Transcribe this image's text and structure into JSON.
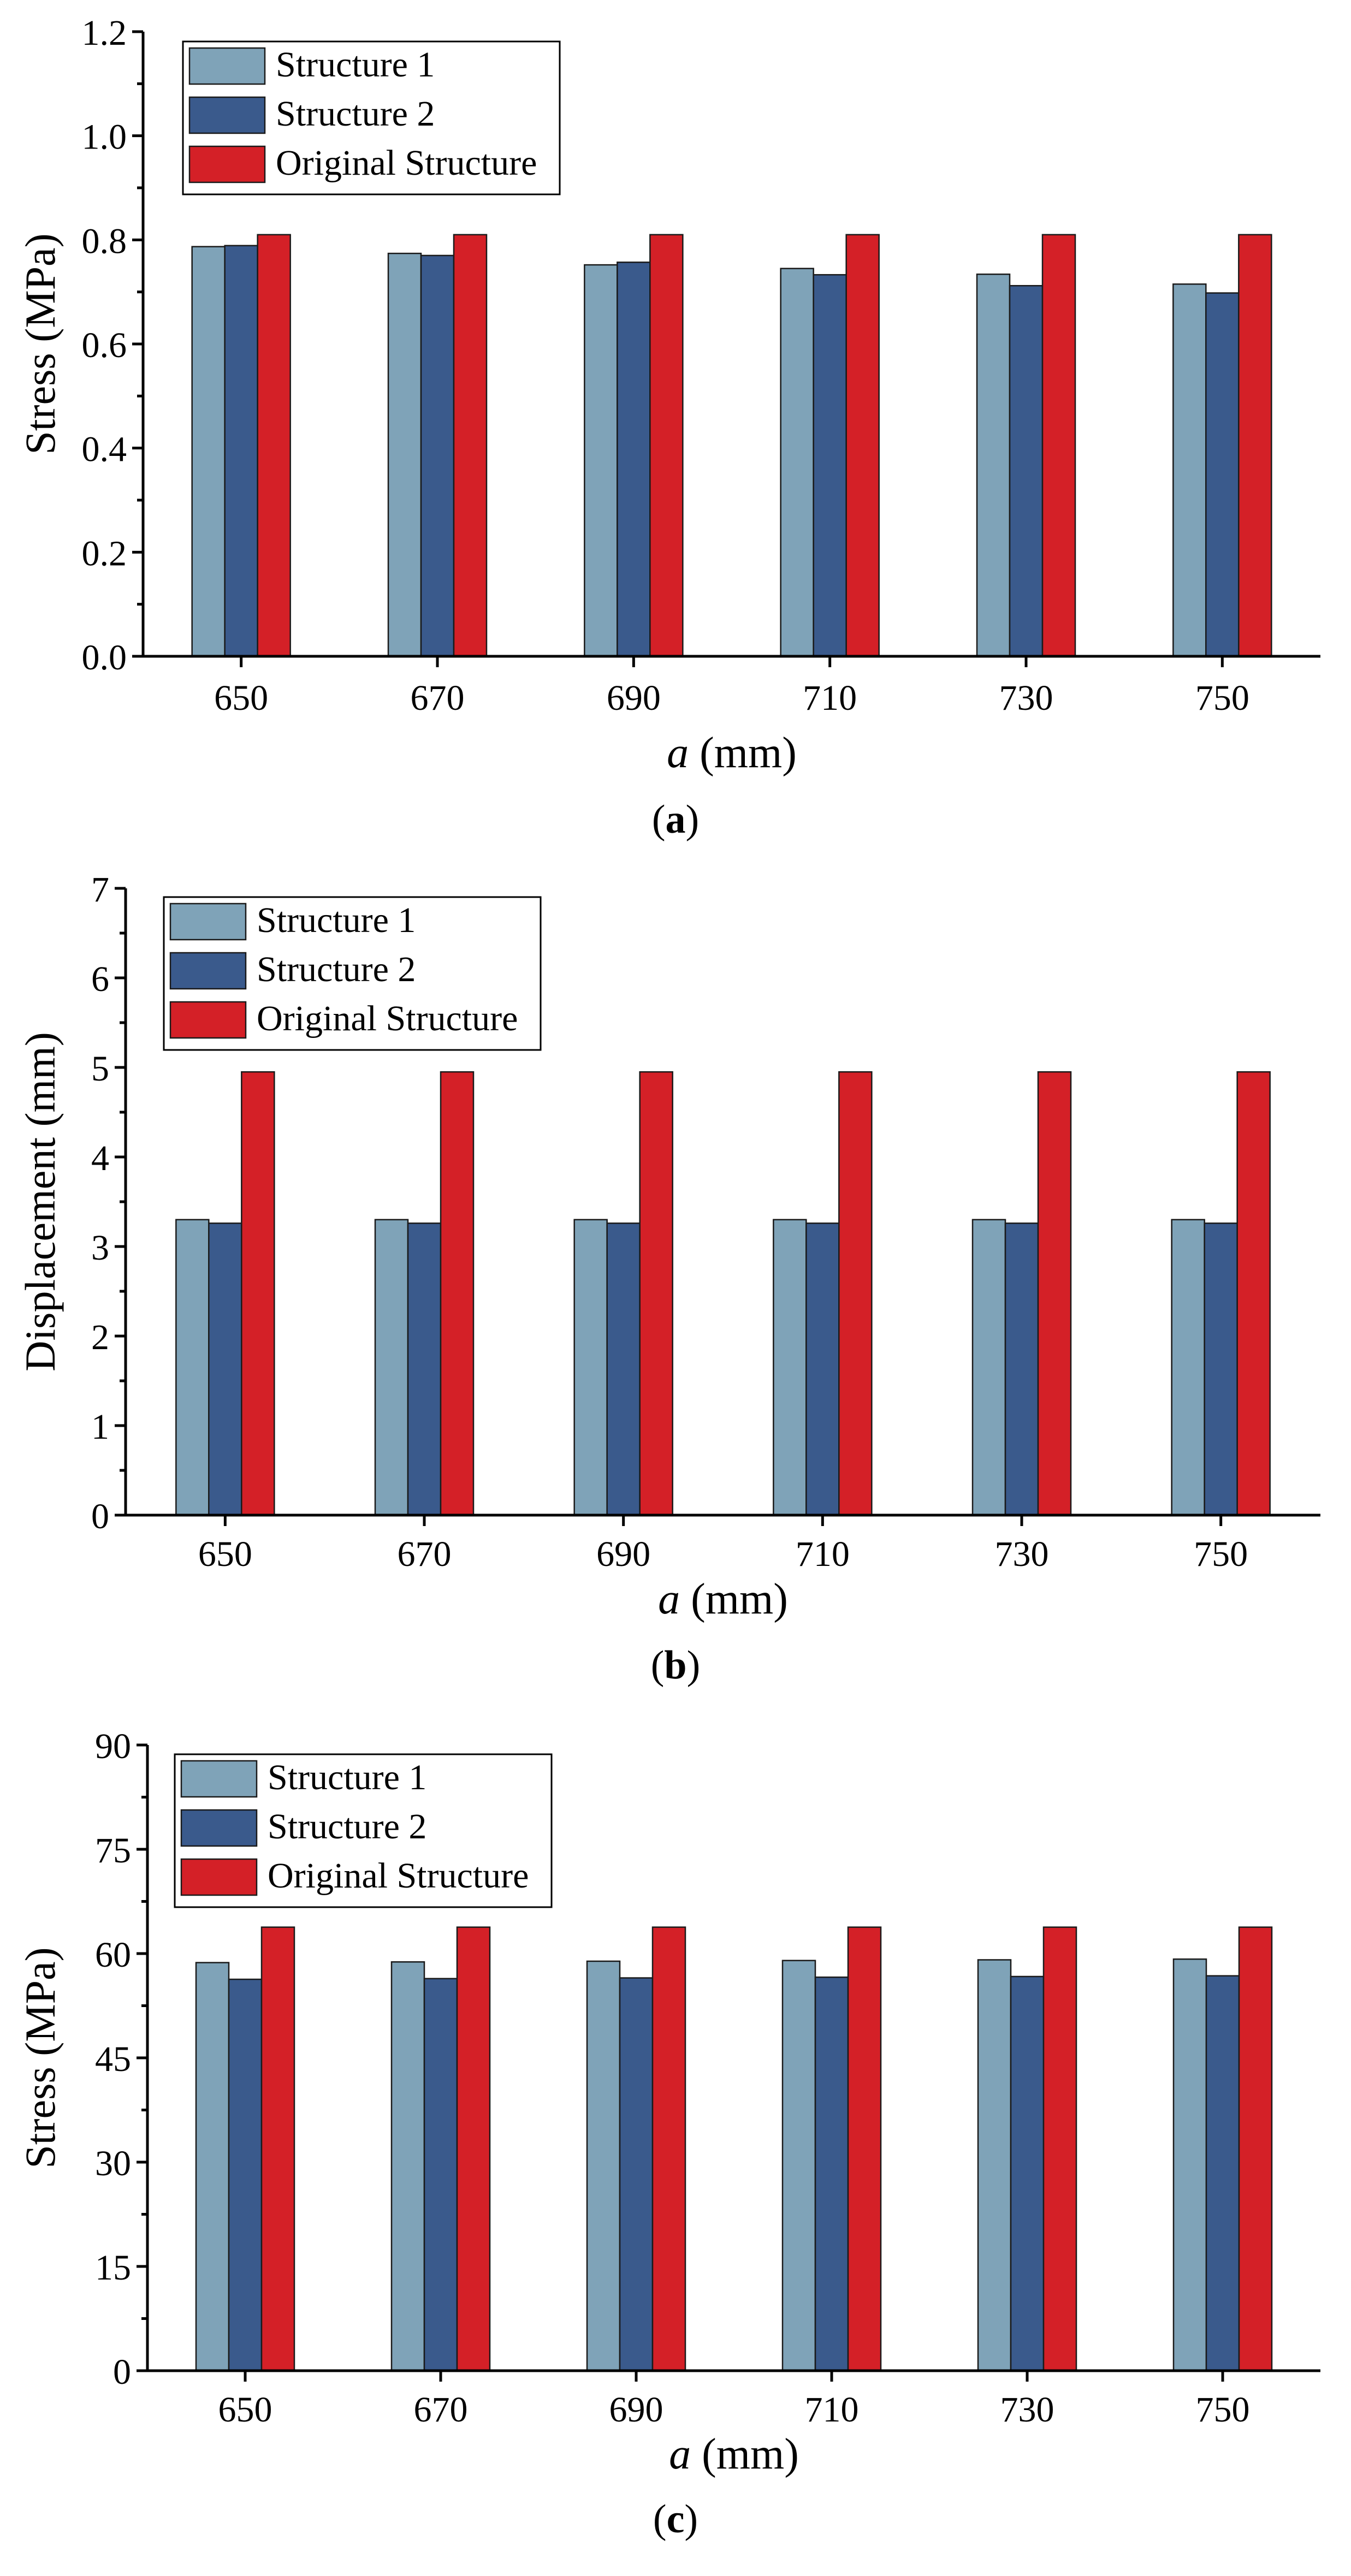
{
  "chart_data": [
    {
      "type": "bar",
      "panel_label": "a",
      "xlabel_var": "a",
      "xlabel_unit": " (mm)",
      "ylabel": "Stress (MPa)",
      "ylim": [
        0,
        1.2
      ],
      "yticks": [
        "0.0",
        "0.2",
        "0.4",
        "0.6",
        "0.8",
        "1.0",
        "1.2"
      ],
      "ytick_values": [
        0,
        0.2,
        0.4,
        0.6,
        0.8,
        1.0,
        1.2
      ],
      "categories": [
        "650",
        "670",
        "690",
        "710",
        "730",
        "750"
      ],
      "series": [
        {
          "name": "Structure 1",
          "color": "#7fa3b8",
          "values": [
            0.787,
            0.774,
            0.752,
            0.745,
            0.734,
            0.715
          ]
        },
        {
          "name": "Structure 2",
          "color": "#3a5a8c",
          "values": [
            0.789,
            0.77,
            0.757,
            0.733,
            0.712,
            0.698
          ]
        },
        {
          "name": "Original Structure",
          "color": "#d42027",
          "values": [
            0.81,
            0.81,
            0.81,
            0.81,
            0.81,
            0.81
          ]
        }
      ],
      "legend_position": "top-left"
    },
    {
      "type": "bar",
      "panel_label": "b",
      "xlabel_var": "a",
      "xlabel_unit": " (mm)",
      "ylabel": "Displacement (mm)",
      "ylim": [
        0,
        7
      ],
      "yticks": [
        "0",
        "1",
        "2",
        "3",
        "4",
        "5",
        "6",
        "7"
      ],
      "ytick_values": [
        0,
        1,
        2,
        3,
        4,
        5,
        6,
        7
      ],
      "categories": [
        "650",
        "670",
        "690",
        "710",
        "730",
        "750"
      ],
      "series": [
        {
          "name": "Structure 1",
          "color": "#7fa3b8",
          "values": [
            3.3,
            3.3,
            3.3,
            3.3,
            3.3,
            3.3
          ]
        },
        {
          "name": "Structure 2",
          "color": "#3a5a8c",
          "values": [
            3.26,
            3.26,
            3.26,
            3.26,
            3.26,
            3.26
          ]
        },
        {
          "name": "Original Structure",
          "color": "#d42027",
          "values": [
            4.95,
            4.95,
            4.95,
            4.95,
            4.95,
            4.95
          ]
        }
      ],
      "legend_position": "top-left"
    },
    {
      "type": "bar",
      "panel_label": "c",
      "xlabel_var": "a",
      "xlabel_unit": " (mm)",
      "ylabel": "Stress (MPa)",
      "ylim": [
        0,
        90
      ],
      "yticks": [
        "0",
        "15",
        "30",
        "45",
        "60",
        "75",
        "90"
      ],
      "ytick_values": [
        0,
        15,
        30,
        45,
        60,
        75,
        90
      ],
      "categories": [
        "650",
        "670",
        "690",
        "710",
        "730",
        "750"
      ],
      "series": [
        {
          "name": "Structure 1",
          "color": "#7fa3b8",
          "values": [
            58.7,
            58.8,
            58.9,
            59.0,
            59.1,
            59.2
          ]
        },
        {
          "name": "Structure 2",
          "color": "#3a5a8c",
          "values": [
            56.3,
            56.4,
            56.5,
            56.6,
            56.7,
            56.8
          ]
        },
        {
          "name": "Original Structure",
          "color": "#d42027",
          "values": [
            63.8,
            63.8,
            63.8,
            63.8,
            63.8,
            63.8
          ]
        }
      ],
      "legend_position": "top-left"
    }
  ]
}
